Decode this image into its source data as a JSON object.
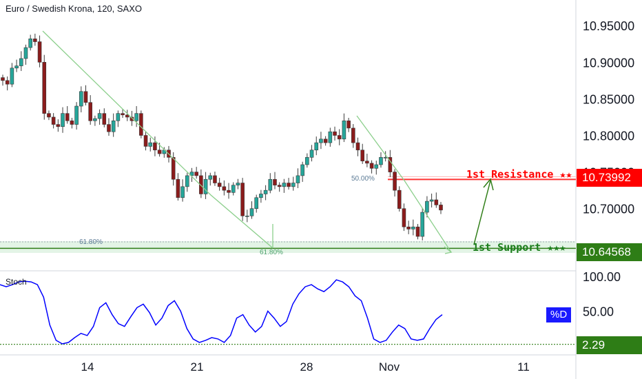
{
  "title": "Euro / Swedish Krona, 120, SAXO",
  "indicator_label": "Stoch",
  "chart_data": [
    {
      "type": "candlestick",
      "title": "Euro / Swedish Krona, 120, SAXO",
      "ylim": [
        10.615,
        10.985
      ],
      "y_ticks": [
        "10.95000",
        "10.90000",
        "10.85000",
        "10.80000",
        "10.75000",
        "10.70000"
      ],
      "x_ticks": [
        "14",
        "21",
        "28",
        "Nov",
        "11"
      ],
      "close_path": [
        10.875,
        10.87,
        10.892,
        10.895,
        10.905,
        10.92,
        10.932,
        10.928,
        10.9,
        10.83,
        10.825,
        10.815,
        10.812,
        10.83,
        10.82,
        10.815,
        10.84,
        10.86,
        10.845,
        10.82,
        10.823,
        10.83,
        10.815,
        10.805,
        10.82,
        10.83,
        10.828,
        10.825,
        10.82,
        10.83,
        10.8,
        10.785,
        10.79,
        10.78,
        10.775,
        10.78,
        10.77,
        10.74,
        10.715,
        10.73,
        10.745,
        10.75,
        10.745,
        10.72,
        10.74,
        10.745,
        10.735,
        10.73,
        10.725,
        10.722,
        10.732,
        10.735,
        10.69,
        10.69,
        10.7,
        10.715,
        10.72,
        10.725,
        10.74,
        10.732,
        10.73,
        10.735,
        10.73,
        10.735,
        10.745,
        10.76,
        10.77,
        10.78,
        10.79,
        10.795,
        10.79,
        10.805,
        10.8,
        10.795,
        10.82,
        10.81,
        10.79,
        10.78,
        10.765,
        10.762,
        10.755,
        10.76,
        10.77,
        10.77,
        10.75,
        10.725,
        10.7,
        10.675,
        10.672,
        10.675,
        10.662,
        10.695,
        10.71,
        10.712,
        10.705,
        10.698
      ],
      "resistance": {
        "label": "1st Resistance ★★",
        "value": "10.73992",
        "color": "#ff0000"
      },
      "support": {
        "label": "1st Support ★★★",
        "value": "10.64568",
        "color": "#1b7d1b"
      },
      "fib_labels": [
        "61.80%",
        "61.80%",
        "50.00%"
      ]
    },
    {
      "type": "line",
      "title": "Stoch",
      "ylim": [
        0,
        100
      ],
      "y_ticks": [
        "100.00",
        "50.00"
      ],
      "series": [
        {
          "name": "%D",
          "color": "#0000ff",
          "values": [
            88,
            85,
            88,
            92,
            93,
            92,
            88,
            70,
            30,
            8,
            3,
            5,
            12,
            18,
            15,
            28,
            55,
            62,
            45,
            32,
            28,
            42,
            55,
            60,
            48,
            30,
            40,
            58,
            65,
            50,
            25,
            10,
            5,
            8,
            12,
            10,
            5,
            15,
            40,
            45,
            30,
            20,
            28,
            50,
            40,
            28,
            35,
            60,
            75,
            85,
            88,
            82,
            78,
            85,
            95,
            92,
            85,
            72,
            65,
            40,
            10,
            5,
            8,
            20,
            30,
            25,
            10,
            8,
            10,
            25,
            38,
            45
          ]
        }
      ],
      "current_value": "2.29",
      "d_label": "%D"
    }
  ]
}
